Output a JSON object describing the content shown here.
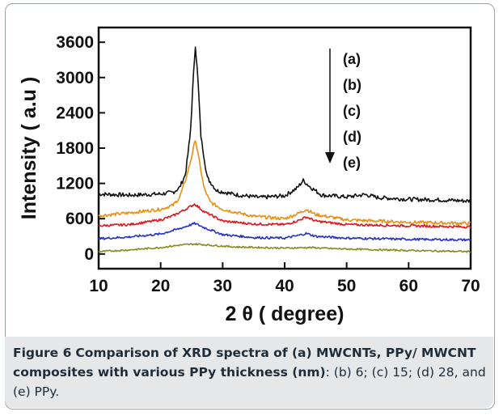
{
  "caption": {
    "label": "Figure 6",
    "title": "Comparison of XRD spectra of (a) MWCNTs, PPy/ MWCNT composites with various PPy thickness (nm)",
    "body": ": (b) 6; (c) 15; (d) 28, and (e) PPy."
  },
  "chart_data": {
    "type": "line",
    "xlabel": "2 θ ( degree)",
    "ylabel": "Intensity ( a.u )",
    "xlim": [
      10,
      70
    ],
    "ylim": [
      -250,
      3850
    ],
    "xticks": [
      10,
      20,
      30,
      40,
      50,
      60,
      70
    ],
    "yticks": [
      0,
      600,
      1200,
      1800,
      2400,
      3000,
      3600
    ],
    "annotation": {
      "arrow": "downward",
      "labels": [
        "(a)",
        "(b)",
        "(c)",
        "(d)",
        "(e)"
      ]
    },
    "series": [
      {
        "name": "(a)",
        "color": "#111111",
        "points": [
          [
            10,
            1020
          ],
          [
            15,
            1000
          ],
          [
            20,
            1020
          ],
          [
            22,
            1050
          ],
          [
            23,
            1120
          ],
          [
            24,
            1350
          ],
          [
            24.8,
            2050
          ],
          [
            25.3,
            3050
          ],
          [
            25.6,
            3550
          ],
          [
            26,
            3000
          ],
          [
            26.5,
            2000
          ],
          [
            27.5,
            1300
          ],
          [
            29,
            1080
          ],
          [
            32,
            1010
          ],
          [
            36,
            960
          ],
          [
            40,
            990
          ],
          [
            42,
            1120
          ],
          [
            43,
            1250
          ],
          [
            44,
            1150
          ],
          [
            46,
            1000
          ],
          [
            50,
            970
          ],
          [
            53,
            1010
          ],
          [
            55,
            960
          ],
          [
            60,
            930
          ],
          [
            65,
            920
          ],
          [
            70,
            900
          ]
        ]
      },
      {
        "name": "(b)",
        "color": "#e8900e",
        "points": [
          [
            10,
            650
          ],
          [
            15,
            700
          ],
          [
            20,
            760
          ],
          [
            22,
            830
          ],
          [
            23,
            950
          ],
          [
            24,
            1250
          ],
          [
            25,
            1650
          ],
          [
            25.6,
            1950
          ],
          [
            26.2,
            1600
          ],
          [
            27,
            1120
          ],
          [
            28,
            880
          ],
          [
            30,
            760
          ],
          [
            35,
            640
          ],
          [
            40,
            600
          ],
          [
            42,
            680
          ],
          [
            43.5,
            760
          ],
          [
            45,
            670
          ],
          [
            50,
            580
          ],
          [
            55,
            560
          ],
          [
            60,
            540
          ],
          [
            65,
            530
          ],
          [
            70,
            520
          ]
        ]
      },
      {
        "name": "(c)",
        "color": "#e0141e",
        "points": [
          [
            10,
            480
          ],
          [
            15,
            500
          ],
          [
            20,
            580
          ],
          [
            22,
            650
          ],
          [
            24,
            760
          ],
          [
            25.5,
            850
          ],
          [
            27,
            720
          ],
          [
            30,
            560
          ],
          [
            35,
            510
          ],
          [
            40,
            500
          ],
          [
            42,
            560
          ],
          [
            43.5,
            630
          ],
          [
            45,
            560
          ],
          [
            50,
            500
          ],
          [
            55,
            490
          ],
          [
            60,
            480
          ],
          [
            65,
            470
          ],
          [
            70,
            460
          ]
        ]
      },
      {
        "name": "(d)",
        "color": "#2432c4",
        "points": [
          [
            10,
            260
          ],
          [
            15,
            290
          ],
          [
            20,
            340
          ],
          [
            23,
            430
          ],
          [
            25.5,
            520
          ],
          [
            27,
            450
          ],
          [
            30,
            330
          ],
          [
            35,
            280
          ],
          [
            40,
            270
          ],
          [
            42,
            310
          ],
          [
            43.5,
            350
          ],
          [
            45,
            300
          ],
          [
            50,
            270
          ],
          [
            55,
            260
          ],
          [
            60,
            250
          ],
          [
            65,
            245
          ],
          [
            70,
            240
          ]
        ]
      },
      {
        "name": "(e)",
        "color": "#8a8a1a",
        "points": [
          [
            10,
            40
          ],
          [
            15,
            70
          ],
          [
            20,
            110
          ],
          [
            23,
            150
          ],
          [
            25.5,
            170
          ],
          [
            28,
            150
          ],
          [
            32,
            120
          ],
          [
            36,
            110
          ],
          [
            40,
            100
          ],
          [
            44,
            110
          ],
          [
            48,
            90
          ],
          [
            52,
            80
          ],
          [
            56,
            70
          ],
          [
            60,
            60
          ],
          [
            65,
            50
          ],
          [
            70,
            40
          ]
        ]
      }
    ]
  }
}
